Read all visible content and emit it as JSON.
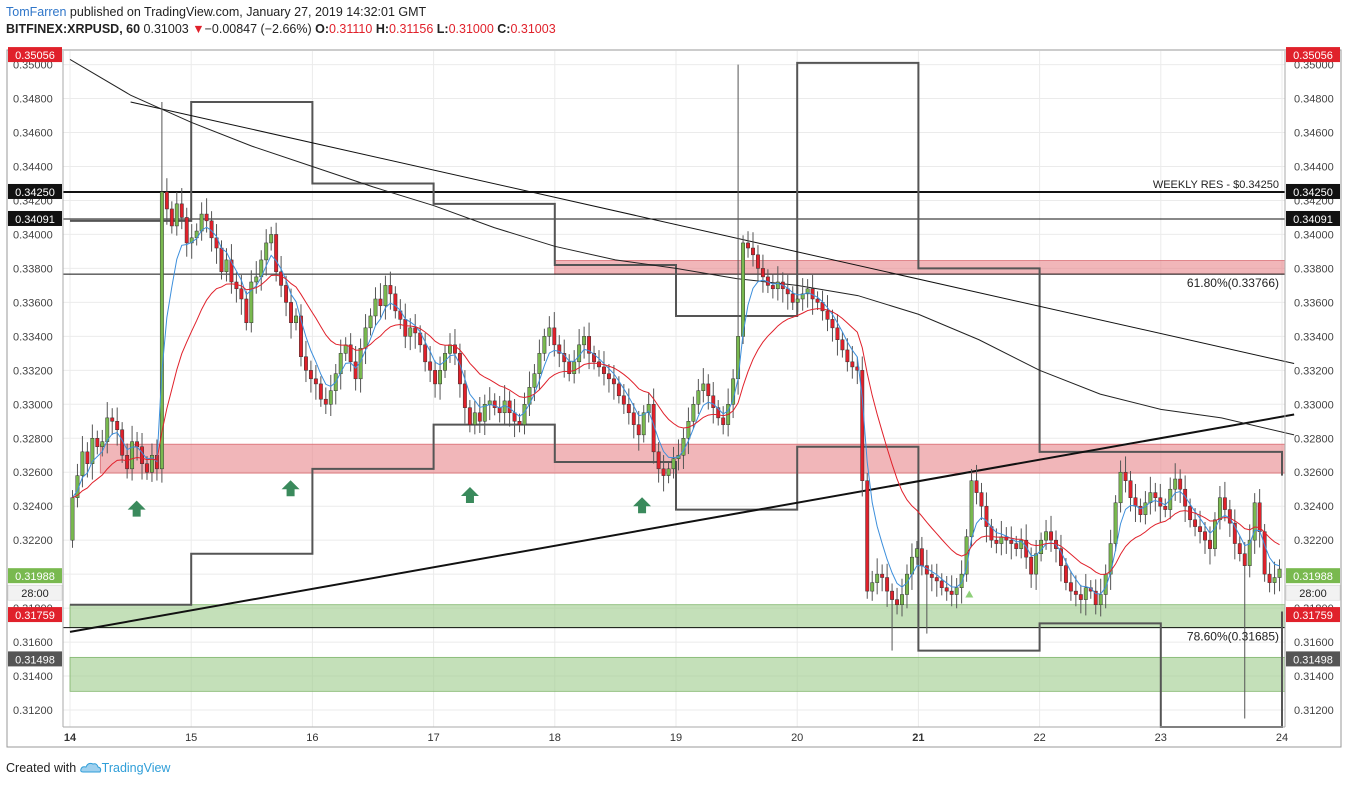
{
  "header": {
    "author": "TomFarren",
    "published": "published on TradingView.com, January 27, 2019 14:32:01 GMT",
    "symbol": "BITFINEX:XRPUSD, 60",
    "price": "0.31003",
    "change_icon": "down-triangle",
    "change_glyph": "▼",
    "change": "−0.00847 (−2.66%)",
    "o_label": "O:",
    "o_value": "0.31110",
    "h_label": "H:",
    "h_value": "0.31156",
    "l_label": "L:",
    "l_value": "0.31000",
    "c_label": "C:",
    "c_value": "0.31003"
  },
  "footer": {
    "created": "Created with",
    "logo_icon": "tradingview-cloud-icon",
    "brand": "TradingView"
  },
  "colors": {
    "up": "#79b94f",
    "down": "#e0212b",
    "zone_red": "#e8868a",
    "zone_green": "#9ccc8a",
    "marker": "#3a8a5c",
    "ema_fast": "#3d8fdc",
    "ema_slow": "#e0212b"
  },
  "chart_data": {
    "type": "candlestick",
    "symbol": "BITFINEX:XRPUSD",
    "interval": "60",
    "ylim": [
      0.311,
      0.3508
    ],
    "x_ticks": [
      "14",
      "15",
      "16",
      "17",
      "18",
      "19",
      "20",
      "21",
      "22",
      "23",
      "24"
    ],
    "x_tick_bold": "21",
    "y_ticks": [
      "0.31200",
      "0.31400",
      "0.31600",
      "0.31800",
      "0.32000",
      "0.32200",
      "0.32400",
      "0.32600",
      "0.32800",
      "0.33000",
      "0.33200",
      "0.33400",
      "0.33600",
      "0.33800",
      "0.34000",
      "0.34200",
      "0.34400",
      "0.34600",
      "0.34800",
      "0.35000"
    ],
    "price_tags": [
      {
        "label": "0.35056",
        "value": 0.35056,
        "color": "#e0212b"
      },
      {
        "label": "0.34250",
        "value": 0.3425,
        "color": "#111111"
      },
      {
        "label": "0.34091",
        "value": 0.34091,
        "color": "#111111"
      },
      {
        "label": "0.31988",
        "value": 0.31988,
        "color": "#79b94f"
      },
      {
        "label": "0.31759",
        "value": 0.31759,
        "color": "#e0212b"
      },
      {
        "label": "0.31498",
        "value": 0.31498,
        "color": "#555555"
      }
    ],
    "countdown": "28:00",
    "horizontal_lines": [
      {
        "value": 0.3425,
        "label": "WEEKLY RES - $0.34250"
      },
      {
        "value": 0.34091,
        "label": ""
      },
      {
        "value": 0.33766,
        "label": "61.80%(0.33766)"
      },
      {
        "value": 0.31685,
        "label": "78.60%(0.31685)"
      }
    ],
    "zones": [
      {
        "from": 0.33766,
        "to": 0.33846,
        "color": "red",
        "x_start": 18.0
      },
      {
        "from": 0.32595,
        "to": 0.32765,
        "color": "red",
        "x_start": 14.25
      },
      {
        "from": 0.31685,
        "to": 0.3182,
        "color": "green",
        "x_start": 14.0
      },
      {
        "from": 0.3131,
        "to": 0.3151,
        "color": "green",
        "x_start": 14.0
      }
    ],
    "trendlines": [
      {
        "name": "descending-trendline",
        "x": [
          14.5,
          24.1
        ],
        "y": [
          0.3478,
          0.3324
        ]
      },
      {
        "name": "ascending-trendline",
        "x": [
          14.0,
          24.1
        ],
        "y": [
          0.3166,
          0.3294
        ]
      }
    ],
    "ma_200": {
      "x": [
        14.0,
        14.5,
        15.0,
        15.5,
        16.0,
        16.5,
        17.0,
        17.5,
        18.0,
        18.5,
        19.0,
        19.5,
        20.0,
        20.5,
        21.0,
        21.5,
        22.0,
        22.5,
        23.0,
        23.5,
        24.1
      ],
      "y": [
        0.3503,
        0.3482,
        0.3466,
        0.3452,
        0.344,
        0.3428,
        0.3417,
        0.3404,
        0.3393,
        0.3385,
        0.338,
        0.3374,
        0.337,
        0.3364,
        0.3353,
        0.3338,
        0.332,
        0.3306,
        0.3297,
        0.3292,
        0.3282
      ]
    },
    "prev_day_high": {
      "x": [
        14.0,
        15.0,
        15.0,
        16.0,
        16.0,
        17.0,
        17.0,
        18.0,
        18.0,
        19.0,
        19.0,
        20.0,
        20.0,
        21.0,
        21.0,
        22.0,
        22.0,
        23.0,
        23.0,
        24.0,
        24.0
      ],
      "y": [
        0.3408,
        0.3408,
        0.3478,
        0.3478,
        0.343,
        0.343,
        0.3418,
        0.3418,
        0.3382,
        0.3382,
        0.3352,
        0.3352,
        0.3501,
        0.3501,
        0.338,
        0.338,
        0.3272,
        0.3272,
        0.3272,
        0.3272,
        0.3258
      ]
    },
    "prev_day_low": {
      "x": [
        14.0,
        15.0,
        15.0,
        16.0,
        16.0,
        17.0,
        17.0,
        18.0,
        18.0,
        19.0,
        19.0,
        20.0,
        20.0,
        21.0,
        21.0,
        22.0,
        22.0,
        23.0,
        23.0,
        24.0,
        24.0
      ],
      "y": [
        0.3182,
        0.3182,
        0.3212,
        0.3212,
        0.3262,
        0.3262,
        0.3288,
        0.3288,
        0.3266,
        0.3266,
        0.3238,
        0.3238,
        0.3275,
        0.3275,
        0.3155,
        0.3155,
        0.3171,
        0.3171,
        0.311,
        0.311,
        0.3178
      ]
    },
    "markers": [
      {
        "type": "arrow-up",
        "x": 14.55,
        "y": 0.3238
      },
      {
        "type": "arrow-up",
        "x": 15.82,
        "y": 0.325
      },
      {
        "type": "arrow-up",
        "x": 17.3,
        "y": 0.3246
      },
      {
        "type": "arrow-up",
        "x": 18.72,
        "y": 0.324
      },
      {
        "type": "small-triangle",
        "x": 21.42,
        "y": 0.3188
      }
    ],
    "closes": [
      0.3245,
      0.3258,
      0.3272,
      0.3265,
      0.328,
      0.3275,
      0.3278,
      0.3292,
      0.329,
      0.3285,
      0.327,
      0.3262,
      0.3278,
      0.3275,
      0.3265,
      0.326,
      0.327,
      0.3262,
      0.3425,
      0.3415,
      0.3405,
      0.3418,
      0.341,
      0.3395,
      0.3398,
      0.3402,
      0.3412,
      0.3408,
      0.3398,
      0.3392,
      0.3378,
      0.3385,
      0.3372,
      0.3368,
      0.3362,
      0.3348,
      0.3372,
      0.3375,
      0.3385,
      0.3395,
      0.34,
      0.3378,
      0.337,
      0.336,
      0.3348,
      0.3352,
      0.3328,
      0.332,
      0.3315,
      0.3312,
      0.3303,
      0.33,
      0.3308,
      0.3318,
      0.333,
      0.3335,
      0.3325,
      0.3315,
      0.3333,
      0.3345,
      0.3352,
      0.3362,
      0.3358,
      0.337,
      0.3365,
      0.3355,
      0.335,
      0.334,
      0.3345,
      0.3342,
      0.3335,
      0.3325,
      0.332,
      0.3312,
      0.332,
      0.333,
      0.3335,
      0.333,
      0.3312,
      0.3298,
      0.3288,
      0.3295,
      0.329,
      0.33,
      0.3302,
      0.3298,
      0.3295,
      0.3302,
      0.3295,
      0.329,
      0.3288,
      0.33,
      0.331,
      0.3318,
      0.333,
      0.334,
      0.3345,
      0.3335,
      0.333,
      0.3325,
      0.3318,
      0.3325,
      0.3335,
      0.334,
      0.333,
      0.3325,
      0.3322,
      0.3318,
      0.3315,
      0.3312,
      0.3305,
      0.33,
      0.3295,
      0.3288,
      0.3282,
      0.3295,
      0.33,
      0.3272,
      0.3262,
      0.3258,
      0.3262,
      0.3268,
      0.327,
      0.328,
      0.329,
      0.33,
      0.3308,
      0.3312,
      0.3305,
      0.3298,
      0.3292,
      0.3288,
      0.33,
      0.3315,
      0.334,
      0.3395,
      0.3392,
      0.3388,
      0.338,
      0.3375,
      0.337,
      0.3368,
      0.3372,
      0.3368,
      0.3365,
      0.336,
      0.3362,
      0.3365,
      0.3368,
      0.3362,
      0.336,
      0.3355,
      0.335,
      0.3345,
      0.3338,
      0.3332,
      0.3325,
      0.3322,
      0.332,
      0.3255,
      0.319,
      0.3195,
      0.32,
      0.3198,
      0.319,
      0.3185,
      0.3182,
      0.3188,
      0.32,
      0.321,
      0.3215,
      0.3205,
      0.32,
      0.3198,
      0.3196,
      0.3192,
      0.319,
      0.3188,
      0.3192,
      0.32,
      0.3222,
      0.3255,
      0.3248,
      0.324,
      0.3228,
      0.322,
      0.3218,
      0.3222,
      0.322,
      0.3218,
      0.3215,
      0.322,
      0.321,
      0.32,
      0.3212,
      0.322,
      0.3225,
      0.322,
      0.3215,
      0.3205,
      0.3195,
      0.319,
      0.3188,
      0.3185,
      0.3192,
      0.319,
      0.3182,
      0.3188,
      0.32,
      0.3218,
      0.3242,
      0.326,
      0.3255,
      0.3245,
      0.324,
      0.3235,
      0.3242,
      0.3248,
      0.3245,
      0.324,
      0.3238,
      0.325,
      0.3256,
      0.325,
      0.324,
      0.3232,
      0.3228,
      0.3225,
      0.322,
      0.3215,
      0.3232,
      0.3245,
      0.3238,
      0.323,
      0.3218,
      0.3212,
      0.3205,
      0.322,
      0.3242,
      0.3225,
      0.32,
      0.3195,
      0.3198,
      0.3203
    ]
  }
}
